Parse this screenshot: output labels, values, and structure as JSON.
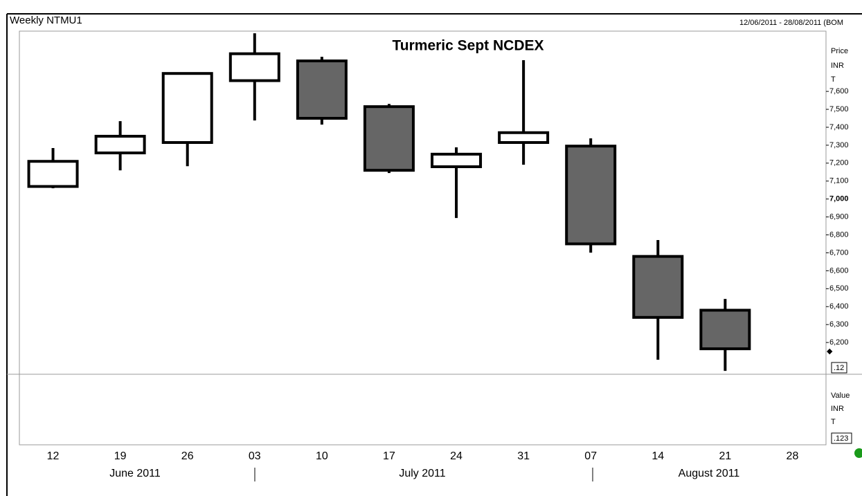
{
  "header": {
    "title": "Weekly NTMU1",
    "range": "12/06/2011 - 28/08/2011 (BOM"
  },
  "price_axis": {
    "label": "Price",
    "unit": "INR",
    "mode": "T",
    "last": ".12"
  },
  "value_pane": {
    "label": "Value",
    "unit": "INR",
    "mode": "T",
    "last": ".123"
  },
  "chart_data": {
    "type": "candlestick",
    "title": "Turmeric Sept NCDEX",
    "categories": [
      "12",
      "19",
      "26",
      "03",
      "10",
      "17",
      "24",
      "31",
      "07",
      "14",
      "21",
      "28"
    ],
    "months": [
      "June 2011",
      "July 2011",
      "August 2011"
    ],
    "open": [
      7070,
      7257,
      7315,
      7660,
      7770,
      7515,
      7180,
      7315,
      7295,
      6680,
      6380,
      null
    ],
    "high": [
      7284,
      7434,
      7704,
      7924,
      7793,
      7530,
      7288,
      7774,
      7338,
      6771,
      6443,
      null
    ],
    "low": [
      7060,
      7160,
      7183,
      7438,
      7415,
      7145,
      6894,
      7191,
      6701,
      6104,
      6042,
      null
    ],
    "close": [
      7210,
      7350,
      7700,
      7810,
      7450,
      7160,
      7250,
      7370,
      6750,
      6340,
      6165,
      null
    ],
    "up_color": "#ffffff",
    "down_color": "#666666",
    "ylim": [
      6023,
      7936
    ],
    "yticks": [
      {
        "value": 6200,
        "label": "6,200"
      },
      {
        "value": 6300,
        "label": "6,300"
      },
      {
        "value": 6400,
        "label": "6,400"
      },
      {
        "value": 6500,
        "label": "6,500"
      },
      {
        "value": 6600,
        "label": "6,600"
      },
      {
        "value": 6700,
        "label": "6,700"
      },
      {
        "value": 6800,
        "label": "6,800"
      },
      {
        "value": 6900,
        "label": "6,900"
      },
      {
        "value": 7000,
        "label": "7,000"
      },
      {
        "value": 7100,
        "label": "7,100"
      },
      {
        "value": 7200,
        "label": "7,200"
      },
      {
        "value": 7300,
        "label": "7,300"
      },
      {
        "value": 7400,
        "label": "7,400"
      },
      {
        "value": 7500,
        "label": "7,500"
      },
      {
        "value": 7600,
        "label": "7,600"
      }
    ]
  }
}
